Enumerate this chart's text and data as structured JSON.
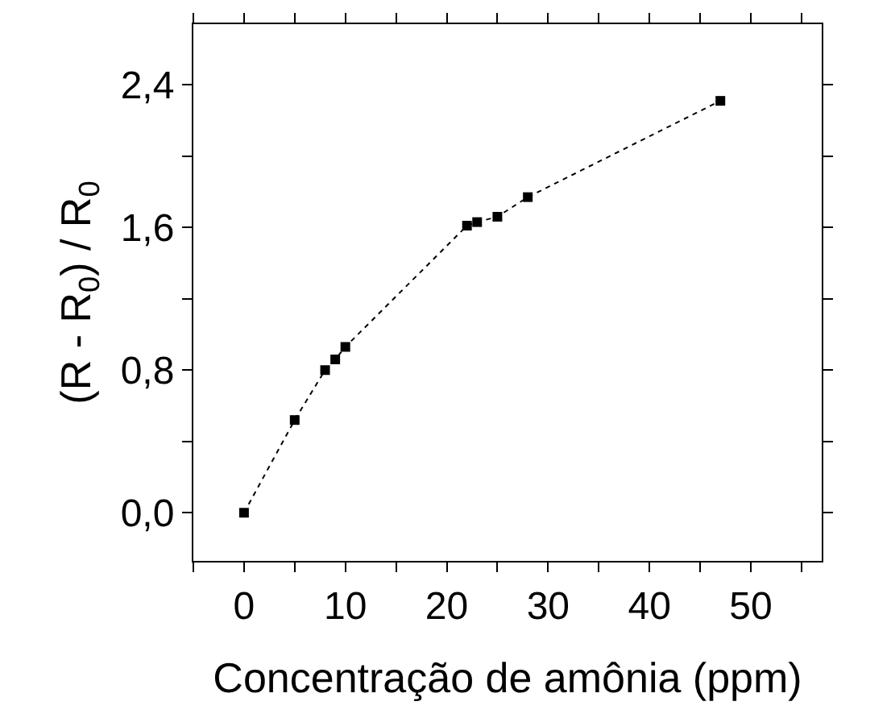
{
  "chart_data": {
    "type": "line",
    "xlabel": "Concentração de amônia (ppm)",
    "ylabel": "(R - R$_{0}$) / R$_{0}$",
    "x": [
      0,
      5,
      8,
      9,
      10,
      22,
      23,
      25,
      28,
      47
    ],
    "series": [
      {
        "color": "#000000",
        "values": [
          0,
          0.52,
          0.8,
          0.86,
          0.93,
          1.61,
          1.63,
          1.66,
          1.77,
          2.31
        ]
      }
    ],
    "xlim": [
      -5,
      57
    ],
    "xticks": [
      {
        "value": -5,
        "label": null
      },
      0,
      {
        "value": 5,
        "label": null
      },
      10,
      {
        "value": 15,
        "label": null
      },
      20,
      {
        "value": 25,
        "label": null
      },
      30,
      {
        "value": 35,
        "label": null
      },
      40,
      {
        "value": 45,
        "label": null
      },
      50,
      {
        "value": 55,
        "label": null
      }
    ],
    "ylim": [
      -0.27,
      2.74
    ],
    "yticks": [
      {
        "value": 0,
        "label": "0,0"
      },
      {
        "value": 0.4,
        "label": null
      },
      {
        "value": 0.8,
        "label": "0,8"
      },
      {
        "value": 1.2,
        "label": null
      },
      {
        "value": 1.6,
        "label": "1,6"
      },
      {
        "value": 2.0,
        "label": null
      },
      {
        "value": 2.4,
        "label": "2,4"
      }
    ],
    "marker": "square",
    "line_style": "dotted",
    "grid": false
  }
}
